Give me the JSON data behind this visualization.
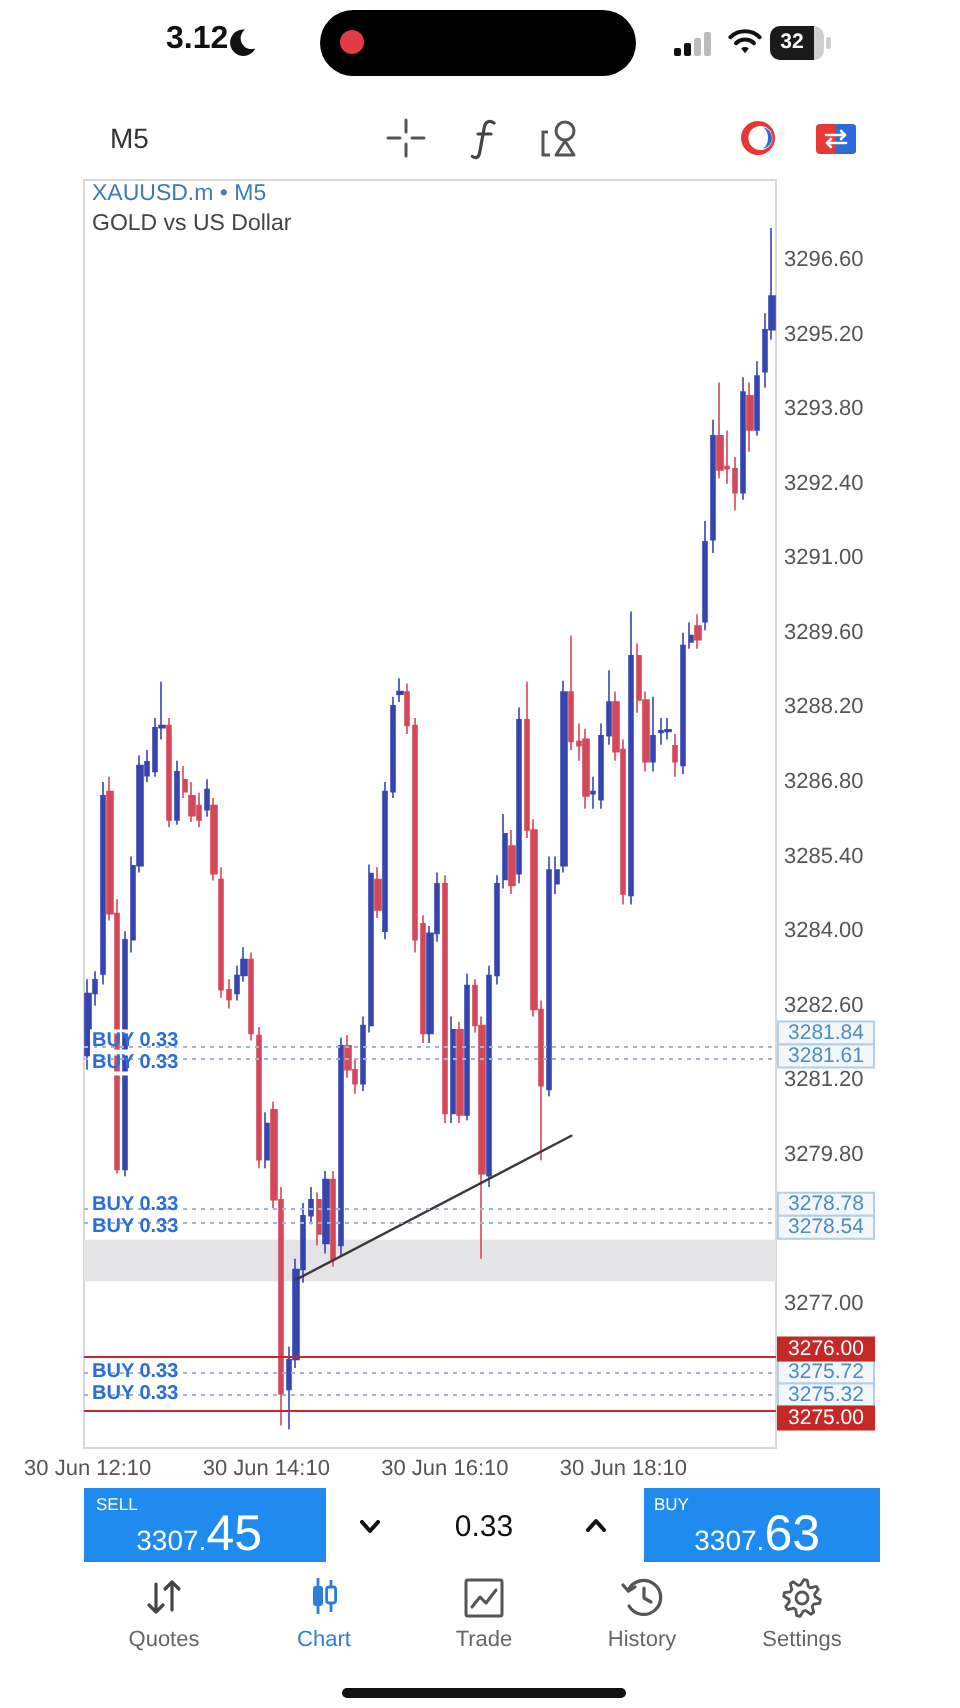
{
  "chart_data": {
    "type": "candlestick",
    "title": "XAUUSD.m • M5",
    "subtitle": "GOLD vs US Dollar",
    "categories": [
      "30 Jun 12:10",
      null,
      null,
      null,
      null,
      null,
      null,
      null,
      null,
      null,
      null,
      null,
      null,
      null,
      null,
      null,
      null,
      null,
      null,
      null,
      null,
      null,
      null,
      null,
      "30 Jun 14:10",
      null,
      null,
      null,
      null,
      null,
      null,
      null,
      null,
      null,
      null,
      null,
      null,
      null,
      null,
      null,
      null,
      null,
      null,
      null,
      null,
      null,
      null,
      null,
      "30 Jun 16:10",
      null,
      null,
      null,
      null,
      null,
      null,
      null,
      null,
      null,
      null,
      null,
      null,
      null,
      null,
      null,
      null,
      null,
      null,
      null,
      null,
      null,
      null,
      null,
      "30 Jun 18:10",
      null,
      null,
      null,
      null,
      null,
      null,
      null,
      null,
      null,
      null,
      null,
      null,
      null,
      null,
      null,
      null,
      null,
      null,
      null,
      null
    ],
    "ohlc": [
      [
        3281.67,
        3283.1,
        3281.4,
        3282.83
      ],
      [
        3282.83,
        3283.25,
        3282.6,
        3283.09
      ],
      [
        3283.2,
        3286.8,
        3283.0,
        3286.54
      ],
      [
        3286.62,
        3286.9,
        3284.2,
        3284.33
      ],
      [
        3284.33,
        3284.6,
        3279.45,
        3279.53
      ],
      [
        3279.53,
        3284.0,
        3279.4,
        3283.84
      ],
      [
        3283.84,
        3285.4,
        3283.6,
        3285.23
      ],
      [
        3285.23,
        3287.3,
        3285.1,
        3287.11
      ],
      [
        3286.92,
        3287.4,
        3286.8,
        3287.18
      ],
      [
        3287.0,
        3288.0,
        3286.9,
        3287.82
      ],
      [
        3287.82,
        3288.68,
        3287.6,
        3287.86
      ],
      [
        3287.86,
        3288.0,
        3285.95,
        3286.09
      ],
      [
        3286.09,
        3287.2,
        3286.0,
        3286.99
      ],
      [
        3286.84,
        3287.1,
        3286.5,
        3286.62
      ],
      [
        3286.54,
        3286.8,
        3286.05,
        3286.17
      ],
      [
        3286.36,
        3286.6,
        3285.95,
        3286.09
      ],
      [
        3286.28,
        3286.85,
        3286.15,
        3286.66
      ],
      [
        3286.36,
        3286.5,
        3284.95,
        3285.08
      ],
      [
        3284.97,
        3285.2,
        3282.75,
        3282.9
      ],
      [
        3282.9,
        3283.1,
        3282.55,
        3282.72
      ],
      [
        3282.83,
        3283.35,
        3282.7,
        3283.17
      ],
      [
        3283.17,
        3283.7,
        3283.05,
        3283.47
      ],
      [
        3283.47,
        3283.6,
        3281.95,
        3282.08
      ],
      [
        3282.04,
        3282.2,
        3279.55,
        3279.71
      ],
      [
        3279.71,
        3280.6,
        3279.55,
        3280.39
      ],
      [
        3280.65,
        3280.8,
        3278.8,
        3278.96
      ],
      [
        3278.96,
        3279.2,
        3274.72,
        3275.32
      ],
      [
        3275.4,
        3276.2,
        3274.65,
        3275.96
      ],
      [
        3275.96,
        3277.85,
        3275.8,
        3277.65
      ],
      [
        3277.65,
        3278.9,
        3277.4,
        3278.66
      ],
      [
        3278.66,
        3279.2,
        3278.5,
        3278.96
      ],
      [
        3278.96,
        3279.1,
        3278.1,
        3278.32
      ],
      [
        3278.14,
        3279.5,
        3277.95,
        3279.34
      ],
      [
        3279.34,
        3279.5,
        3277.7,
        3277.84
      ],
      [
        3278.1,
        3282.0,
        3277.9,
        3281.85
      ],
      [
        3281.85,
        3282.05,
        3281.25,
        3281.4
      ],
      [
        3281.4,
        3281.6,
        3280.95,
        3281.14
      ],
      [
        3281.14,
        3282.4,
        3281.0,
        3282.23
      ],
      [
        3282.23,
        3285.25,
        3282.1,
        3285.08
      ],
      [
        3284.97,
        3285.2,
        3284.25,
        3284.4
      ],
      [
        3284.0,
        3286.8,
        3283.85,
        3286.62
      ],
      [
        3286.62,
        3288.4,
        3286.5,
        3288.23
      ],
      [
        3288.45,
        3288.75,
        3288.3,
        3288.5
      ],
      [
        3288.49,
        3288.65,
        3287.7,
        3287.86
      ],
      [
        3287.86,
        3288.0,
        3283.6,
        3283.84
      ],
      [
        3284.14,
        3284.3,
        3281.9,
        3282.08
      ],
      [
        3282.08,
        3284.1,
        3281.9,
        3283.96
      ],
      [
        3283.96,
        3285.1,
        3283.8,
        3284.89
      ],
      [
        3284.89,
        3285.05,
        3280.4,
        3280.58
      ],
      [
        3280.58,
        3282.4,
        3280.4,
        3282.15
      ],
      [
        3282.15,
        3282.3,
        3280.4,
        3280.55
      ],
      [
        3280.55,
        3283.2,
        3280.45,
        3282.98
      ],
      [
        3282.98,
        3283.1,
        3282.1,
        3282.23
      ],
      [
        3282.23,
        3282.4,
        3277.85,
        3279.45
      ],
      [
        3279.41,
        3283.35,
        3279.2,
        3283.17
      ],
      [
        3283.17,
        3285.05,
        3283.0,
        3284.89
      ],
      [
        3284.97,
        3286.2,
        3284.8,
        3285.83
      ],
      [
        3285.6,
        3285.9,
        3284.7,
        3284.86
      ],
      [
        3285.08,
        3288.2,
        3284.9,
        3287.97
      ],
      [
        3287.97,
        3288.68,
        3285.75,
        3285.9
      ],
      [
        3285.9,
        3286.1,
        3282.4,
        3282.53
      ],
      [
        3282.53,
        3282.7,
        3279.7,
        3281.1
      ],
      [
        3281.03,
        3285.4,
        3280.9,
        3285.15
      ],
      [
        3284.89,
        3285.4,
        3284.7,
        3285.15
      ],
      [
        3285.23,
        3288.7,
        3285.1,
        3288.49
      ],
      [
        3288.49,
        3289.55,
        3287.4,
        3287.56
      ],
      [
        3287.56,
        3287.9,
        3287.2,
        3287.48
      ],
      [
        3287.6,
        3287.8,
        3286.3,
        3286.54
      ],
      [
        3286.58,
        3286.9,
        3286.3,
        3286.62
      ],
      [
        3286.47,
        3287.9,
        3286.3,
        3287.67
      ],
      [
        3287.67,
        3288.9,
        3287.5,
        3288.3
      ],
      [
        3288.3,
        3288.5,
        3287.2,
        3287.37
      ],
      [
        3287.41,
        3287.6,
        3284.5,
        3284.7
      ],
      [
        3284.67,
        3290.0,
        3284.5,
        3289.17
      ],
      [
        3289.17,
        3289.4,
        3288.1,
        3288.34
      ],
      [
        3288.34,
        3288.5,
        3287.0,
        3287.18
      ],
      [
        3287.18,
        3288.4,
        3287.0,
        3287.67
      ],
      [
        3287.73,
        3288.0,
        3287.5,
        3287.76
      ],
      [
        3287.75,
        3288.0,
        3287.6,
        3287.78
      ],
      [
        3287.48,
        3287.7,
        3286.9,
        3287.18
      ],
      [
        3287.11,
        3289.6,
        3286.95,
        3289.36
      ],
      [
        3289.43,
        3289.8,
        3289.3,
        3289.55
      ],
      [
        3289.73,
        3289.95,
        3289.3,
        3289.47
      ],
      [
        3289.81,
        3291.7,
        3289.65,
        3291.31
      ],
      [
        3291.35,
        3293.6,
        3291.1,
        3293.3
      ],
      [
        3293.3,
        3294.3,
        3292.5,
        3292.66
      ],
      [
        3292.72,
        3293.4,
        3292.4,
        3292.68
      ],
      [
        3292.68,
        3292.9,
        3291.9,
        3292.23
      ],
      [
        3292.23,
        3294.4,
        3292.1,
        3294.12
      ],
      [
        3294.05,
        3294.3,
        3293.0,
        3293.41
      ],
      [
        3293.41,
        3294.7,
        3293.3,
        3294.42
      ],
      [
        3294.5,
        3295.6,
        3294.2,
        3295.29
      ],
      [
        3295.29,
        3297.2,
        3295.1,
        3295.92
      ]
    ],
    "colors": [
      "#3646b0",
      "#3646b0",
      "#3646b0",
      "#d4495a",
      "#d4495a",
      "#3646b0",
      "#3646b0",
      "#3646b0",
      "#3646b0",
      "#3646b0",
      "#3646b0",
      "#d4495a",
      "#3646b0",
      "#d4495a",
      "#d4495a",
      "#d4495a",
      "#3646b0",
      "#d4495a",
      "#d4495a",
      "#d4495a",
      "#3646b0",
      "#3646b0",
      "#d4495a",
      "#d4495a",
      "#3646b0",
      "#d4495a",
      "#d4495a",
      "#3646b0",
      "#3646b0",
      "#3646b0",
      "#3646b0",
      "#d4495a",
      "#3646b0",
      "#d4495a",
      "#3646b0",
      "#d4495a",
      "#d4495a",
      "#3646b0",
      "#3646b0",
      "#d4495a",
      "#3646b0",
      "#3646b0",
      "#3646b0",
      "#d4495a",
      "#d4495a",
      "#d4495a",
      "#3646b0",
      "#3646b0",
      "#d4495a",
      "#3646b0",
      "#d4495a",
      "#3646b0",
      "#d4495a",
      "#d4495a",
      "#3646b0",
      "#3646b0",
      "#3646b0",
      "#d4495a",
      "#3646b0",
      "#d4495a",
      "#d4495a",
      "#d4495a",
      "#3646b0",
      "#3646b0",
      "#3646b0",
      "#d4495a",
      "#d4495a",
      "#d4495a",
      "#3646b0",
      "#3646b0",
      "#3646b0",
      "#d4495a",
      "#d4495a",
      "#3646b0",
      "#d4495a",
      "#d4495a",
      "#3646b0",
      "#3646b0",
      "#3646b0",
      "#d4495a",
      "#3646b0",
      "#3646b0",
      "#d4495a",
      "#3646b0",
      "#3646b0",
      "#d4495a",
      "#d4495a",
      "#d4495a",
      "#3646b0",
      "#d4495a",
      "#3646b0",
      "#3646b0",
      "#3646b0"
    ],
    "series": [
      {
        "type": "line",
        "color": "#3a3a3a",
        "values": [
          null,
          null,
          null,
          null,
          null,
          null,
          null,
          null,
          null,
          null,
          null,
          null,
          null,
          null,
          null,
          null,
          null,
          null,
          null,
          null,
          null,
          null,
          null,
          null,
          null,
          null,
          null,
          null,
          3277.46,
          null,
          null,
          null,
          null,
          null,
          null,
          null,
          null,
          null,
          null,
          null,
          null,
          null,
          null,
          null,
          null,
          null,
          null,
          null,
          null,
          null,
          null,
          null,
          null,
          null,
          null,
          null,
          null,
          null,
          null,
          null,
          null,
          null,
          null,
          null,
          null,
          3280.16,
          null,
          null,
          null,
          null,
          null,
          null,
          null,
          null,
          null,
          null,
          null,
          null,
          null,
          null,
          null,
          null,
          null,
          null,
          null,
          null,
          null,
          null,
          null,
          null,
          null,
          null,
          null
        ]
      }
    ],
    "ylim": [
      3274.3,
      3298.1
    ],
    "yticks": [
      {
        "value": 3277,
        "label": "3277.00"
      },
      {
        "value": 3279.8,
        "label": "3279.80"
      },
      {
        "value": 3281.2,
        "label": "3281.20"
      },
      {
        "value": 3282.6,
        "label": "3282.60"
      },
      {
        "value": 3284,
        "label": "3284.00"
      },
      {
        "value": 3285.4,
        "label": "3285.40"
      },
      {
        "value": 3286.8,
        "label": "3286.80"
      },
      {
        "value": 3288.2,
        "label": "3288.20"
      },
      {
        "value": 3289.6,
        "label": "3289.60"
      },
      {
        "value": 3291,
        "label": "3291.00"
      },
      {
        "value": 3292.4,
        "label": "3292.40"
      },
      {
        "value": 3293.8,
        "label": "3293.80"
      },
      {
        "value": 3295.2,
        "label": "3295.20"
      },
      {
        "value": 3296.6,
        "label": "3296.60"
      }
    ],
    "ref_lines": [
      {
        "axis": "y",
        "value": 3281.84,
        "label": "BUY 0.33",
        "color": "#a3b6cc",
        "line_style": "dotted"
      },
      {
        "axis": "y",
        "value": 3281.61,
        "label": "BUY 0.33",
        "color": "#a3b6cc",
        "line_style": "dotted"
      },
      {
        "axis": "y",
        "value": 3278.78,
        "label": "BUY 0.33",
        "color": "#a3b6cc",
        "line_style": "dotted"
      },
      {
        "axis": "y",
        "value": 3278.54,
        "label": "BUY 0.33",
        "color": "#a3b6cc",
        "line_style": "dotted"
      },
      {
        "axis": "y",
        "value": 3275.72,
        "label": "BUY 0.33",
        "color": "#a3b6cc",
        "line_style": "dotted"
      },
      {
        "axis": "y",
        "value": 3275.32,
        "label": "BUY 0.33",
        "color": "#a3b6cc",
        "line_style": "dotted"
      },
      {
        "axis": "y",
        "value": 3276,
        "color": "#c62828",
        "line_style": "solid"
      },
      {
        "axis": "y",
        "value": 3275,
        "color": "#c62828",
        "line_style": "solid"
      }
    ],
    "bands": [
      {
        "axis": "y",
        "from": 3277.43,
        "to": 3278.21,
        "color": "#e4e4e7"
      }
    ],
    "annotations": [
      "3.12",
      "32",
      "M5",
      "SELL",
      "3307.45",
      "0.33",
      "BUY",
      "3307.63",
      "Quotes",
      "Chart",
      "Trade",
      "History",
      "Settings",
      "3281.84",
      "3281.61",
      "3278.78",
      "3278.54",
      "3275.72",
      "3275.32",
      "3276.00",
      "3275.00"
    ]
  }
}
